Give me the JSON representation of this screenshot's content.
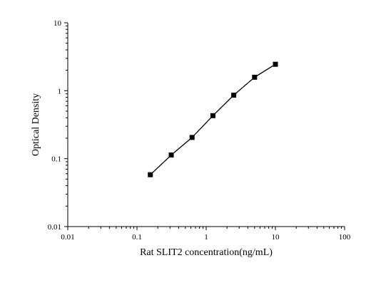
{
  "chart_data": {
    "type": "line",
    "title": "",
    "xlabel": "Rat SLIT2 concentration(ng/mL)",
    "ylabel": "Optical Density",
    "xscale": "log",
    "yscale": "log",
    "xlim": [
      0.01,
      100
    ],
    "ylim": [
      0.01,
      10
    ],
    "x_ticks": [
      "0.01",
      "0.1",
      "1",
      "10",
      "100"
    ],
    "y_ticks": [
      "0.01",
      "0.1",
      "1",
      "10"
    ],
    "grid": false,
    "legend": "none",
    "marker": "square",
    "line_color": "#000000",
    "series": [
      {
        "x": [
          0.156,
          0.3125,
          0.625,
          1.25,
          2.5,
          5,
          10
        ],
        "y": [
          0.058,
          0.113,
          0.205,
          0.43,
          0.86,
          1.58,
          2.45
        ]
      }
    ]
  }
}
